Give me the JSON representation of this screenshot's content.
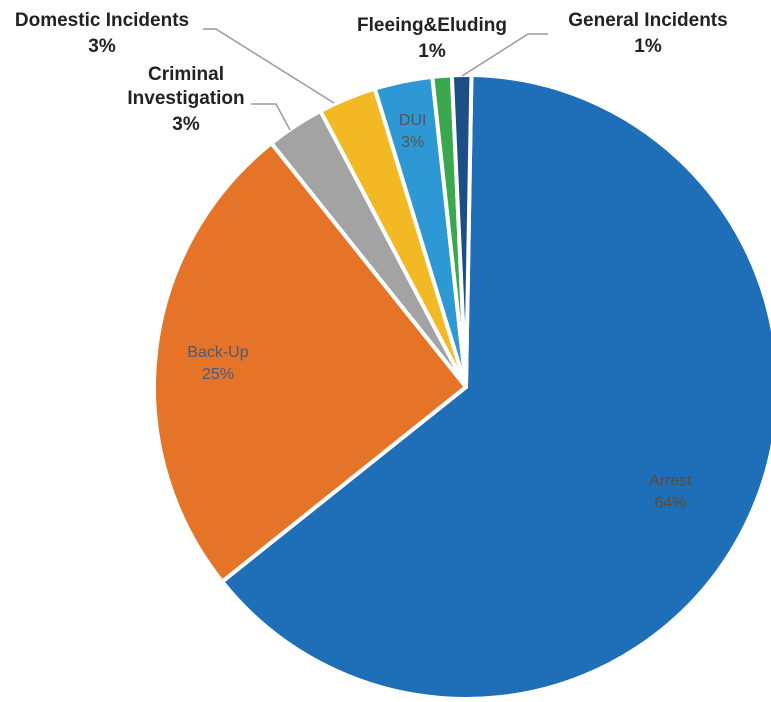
{
  "chart_data": {
    "type": "pie",
    "title": "",
    "legend": "none",
    "slices": [
      {
        "label": "Arrest",
        "value": 64,
        "value_label": "64%",
        "color": "#1f6fb8",
        "label_color": "#5f4a2e",
        "label_placement": "inside"
      },
      {
        "label": "Back-Up",
        "value": 25,
        "value_label": "25%",
        "color": "#e57328",
        "label_color": "#4a5a7a",
        "label_placement": "inside"
      },
      {
        "label": "Criminal Investigation",
        "value": 3,
        "value_label": "3%",
        "color": "#a3a3a3",
        "label_color": "#222222",
        "label_placement": "outside"
      },
      {
        "label": "Domestic Incidents",
        "value": 3,
        "value_label": "3%",
        "color": "#f2b925",
        "label_color": "#222222",
        "label_placement": "outside"
      },
      {
        "label": "DUI",
        "value": 3,
        "value_label": "3%",
        "color": "#2e98d4",
        "label_color": "#555555",
        "label_placement": "inside"
      },
      {
        "label": "Fleeing&Eluding",
        "value": 1,
        "value_label": "1%",
        "color": "#3ba84d",
        "label_color": "#222222",
        "label_placement": "outside"
      },
      {
        "label": "General Incidents",
        "value": 1,
        "value_label": "1%",
        "color": "#1d4f86",
        "label_color": "#222222",
        "label_placement": "outside"
      }
    ]
  }
}
